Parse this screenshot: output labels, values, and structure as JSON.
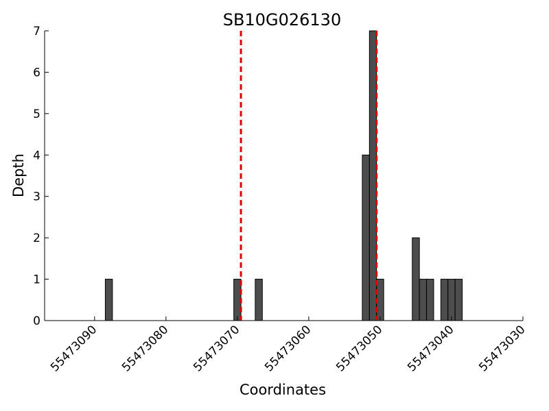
{
  "chart_data": {
    "type": "bar",
    "title": "SB10G026130",
    "xlabel": "Coordinates",
    "ylabel": "Depth",
    "xlim": [
      55473097,
      55473030
    ],
    "ylim": [
      0,
      7
    ],
    "x_reversed": true,
    "xticks": [
      55473090,
      55473080,
      55473070,
      55473060,
      55473050,
      55473040,
      55473030
    ],
    "yticks": [
      0,
      1,
      2,
      3,
      4,
      5,
      6,
      7
    ],
    "bar_width": 1,
    "bar_color": "#4d4d4d",
    "x": [
      55473088,
      55473070,
      55473067,
      55473052,
      55473051,
      55473050,
      55473045,
      55473044,
      55473043,
      55473041,
      55473040,
      55473039
    ],
    "values": [
      1,
      1,
      1,
      4,
      7,
      1,
      2,
      1,
      1,
      1,
      1,
      1
    ],
    "reference_lines": [
      {
        "x": 55473069.5,
        "color": "#dd0000",
        "style": "dashed"
      },
      {
        "x": 55473050.5,
        "color": "#dd0000",
        "style": "dashed"
      }
    ],
    "grid": false,
    "legend": "none"
  }
}
